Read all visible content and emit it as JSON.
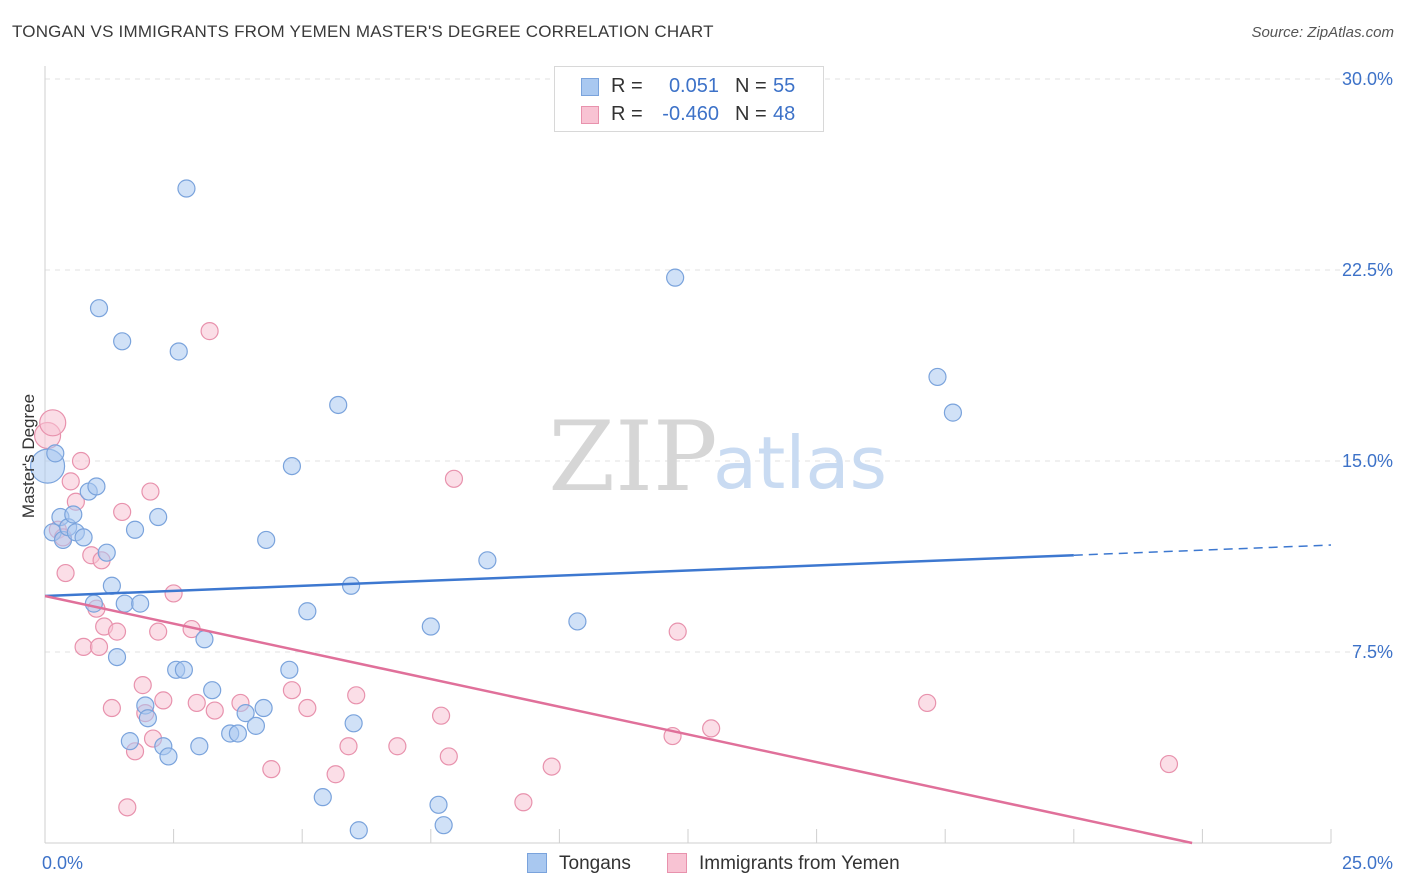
{
  "header": {
    "title": "TONGAN VS IMMIGRANTS FROM YEMEN MASTER'S DEGREE CORRELATION CHART",
    "source": "Source: ZipAtlas.com"
  },
  "watermark": {
    "zip": "ZIP",
    "atlas": "atlas"
  },
  "legend_top": {
    "rows": [
      {
        "r_label": "R =",
        "r_value": "0.051",
        "n_label": "N =",
        "n_value": "55",
        "color": "#a9c8f0",
        "border": "#7aa3dc"
      },
      {
        "r_label": "R =",
        "r_value": "-0.460",
        "n_label": "N =",
        "n_value": "48",
        "color": "#f8c3d3",
        "border": "#e892ad"
      }
    ]
  },
  "legend_bottom": {
    "items": [
      {
        "label": "Tongans",
        "color": "#a9c8f0",
        "border": "#7aa3dc"
      },
      {
        "label": "Immigrants from Yemen",
        "color": "#f8c3d3",
        "border": "#e892ad"
      }
    ]
  },
  "chart_data": {
    "type": "scatter",
    "title": "TONGAN VS IMMIGRANTS FROM YEMEN MASTER'S DEGREE CORRELATION CHART",
    "xlabel": "",
    "ylabel": "Master's Degree",
    "xlim": [
      0,
      25
    ],
    "ylim": [
      0,
      30
    ],
    "x_tick_labels": [
      "0.0%",
      "25.0%"
    ],
    "y_ticks": [
      7.5,
      15.0,
      22.5,
      30.0
    ],
    "y_tick_labels": [
      "7.5%",
      "15.0%",
      "22.5%",
      "30.0%"
    ],
    "grid": true,
    "legend_position": "top-center",
    "colors": {
      "tongans": "#3d78d0",
      "yemen": "#e0709a"
    },
    "series": [
      {
        "name": "Tongans",
        "r": 0.051,
        "n": 55,
        "trend": {
          "x": [
            0,
            20
          ],
          "y": [
            9.7,
            11.3
          ],
          "dash_to": [
            25,
            11.7
          ]
        },
        "points": [
          [
            0.05,
            14.8
          ],
          [
            0.15,
            12.2
          ],
          [
            0.2,
            15.3
          ],
          [
            0.3,
            12.8
          ],
          [
            0.35,
            11.9
          ],
          [
            0.45,
            12.4
          ],
          [
            0.55,
            12.9
          ],
          [
            0.6,
            12.2
          ],
          [
            0.75,
            12.0
          ],
          [
            0.85,
            13.8
          ],
          [
            0.95,
            9.4
          ],
          [
            1.0,
            14.0
          ],
          [
            1.05,
            21.0
          ],
          [
            1.2,
            11.4
          ],
          [
            1.3,
            10.1
          ],
          [
            1.4,
            7.3
          ],
          [
            1.5,
            19.7
          ],
          [
            1.55,
            9.4
          ],
          [
            1.65,
            4.0
          ],
          [
            1.75,
            12.3
          ],
          [
            1.85,
            9.4
          ],
          [
            1.95,
            5.4
          ],
          [
            2.0,
            4.9
          ],
          [
            2.2,
            12.8
          ],
          [
            2.3,
            3.8
          ],
          [
            2.4,
            3.4
          ],
          [
            2.55,
            6.8
          ],
          [
            2.6,
            19.3
          ],
          [
            2.7,
            6.8
          ],
          [
            2.75,
            25.7
          ],
          [
            3.0,
            3.8
          ],
          [
            3.1,
            8.0
          ],
          [
            3.25,
            6.0
          ],
          [
            3.6,
            4.3
          ],
          [
            3.75,
            4.3
          ],
          [
            3.9,
            5.1
          ],
          [
            4.1,
            4.6
          ],
          [
            4.25,
            5.3
          ],
          [
            4.3,
            11.9
          ],
          [
            4.75,
            6.8
          ],
          [
            4.8,
            14.8
          ],
          [
            5.1,
            9.1
          ],
          [
            5.4,
            1.8
          ],
          [
            5.7,
            17.2
          ],
          [
            5.95,
            10.1
          ],
          [
            6.0,
            4.7
          ],
          [
            6.1,
            0.5
          ],
          [
            7.5,
            8.5
          ],
          [
            7.65,
            1.5
          ],
          [
            7.75,
            0.7
          ],
          [
            8.6,
            11.1
          ],
          [
            10.35,
            8.7
          ],
          [
            12.25,
            22.2
          ],
          [
            17.35,
            18.3
          ],
          [
            17.65,
            16.9
          ]
        ]
      },
      {
        "name": "Immigrants from Yemen",
        "r": -0.46,
        "n": 48,
        "trend": {
          "x": [
            0,
            22.3
          ],
          "y": [
            9.7,
            0
          ]
        },
        "points": [
          [
            0.05,
            16.0
          ],
          [
            0.15,
            16.5
          ],
          [
            0.25,
            12.3
          ],
          [
            0.35,
            12.0
          ],
          [
            0.4,
            10.6
          ],
          [
            0.5,
            14.2
          ],
          [
            0.6,
            13.4
          ],
          [
            0.7,
            15.0
          ],
          [
            0.75,
            7.7
          ],
          [
            0.9,
            11.3
          ],
          [
            1.0,
            9.2
          ],
          [
            1.05,
            7.7
          ],
          [
            1.1,
            11.1
          ],
          [
            1.15,
            8.5
          ],
          [
            1.3,
            5.3
          ],
          [
            1.4,
            8.3
          ],
          [
            1.5,
            13.0
          ],
          [
            1.6,
            1.4
          ],
          [
            1.75,
            3.6
          ],
          [
            1.9,
            6.2
          ],
          [
            1.95,
            5.1
          ],
          [
            2.05,
            13.8
          ],
          [
            2.1,
            4.1
          ],
          [
            2.2,
            8.3
          ],
          [
            2.3,
            5.6
          ],
          [
            2.5,
            9.8
          ],
          [
            2.85,
            8.4
          ],
          [
            2.95,
            5.5
          ],
          [
            3.2,
            20.1
          ],
          [
            3.3,
            5.2
          ],
          [
            3.8,
            5.5
          ],
          [
            4.4,
            2.9
          ],
          [
            4.8,
            6.0
          ],
          [
            5.1,
            5.3
          ],
          [
            5.65,
            2.7
          ],
          [
            5.9,
            3.8
          ],
          [
            6.05,
            5.8
          ],
          [
            6.85,
            3.8
          ],
          [
            7.7,
            5.0
          ],
          [
            7.85,
            3.4
          ],
          [
            7.95,
            14.3
          ],
          [
            9.3,
            1.6
          ],
          [
            9.85,
            3.0
          ],
          [
            12.2,
            4.2
          ],
          [
            12.3,
            8.3
          ],
          [
            12.95,
            4.5
          ],
          [
            17.15,
            5.5
          ],
          [
            21.85,
            3.1
          ]
        ]
      }
    ]
  }
}
